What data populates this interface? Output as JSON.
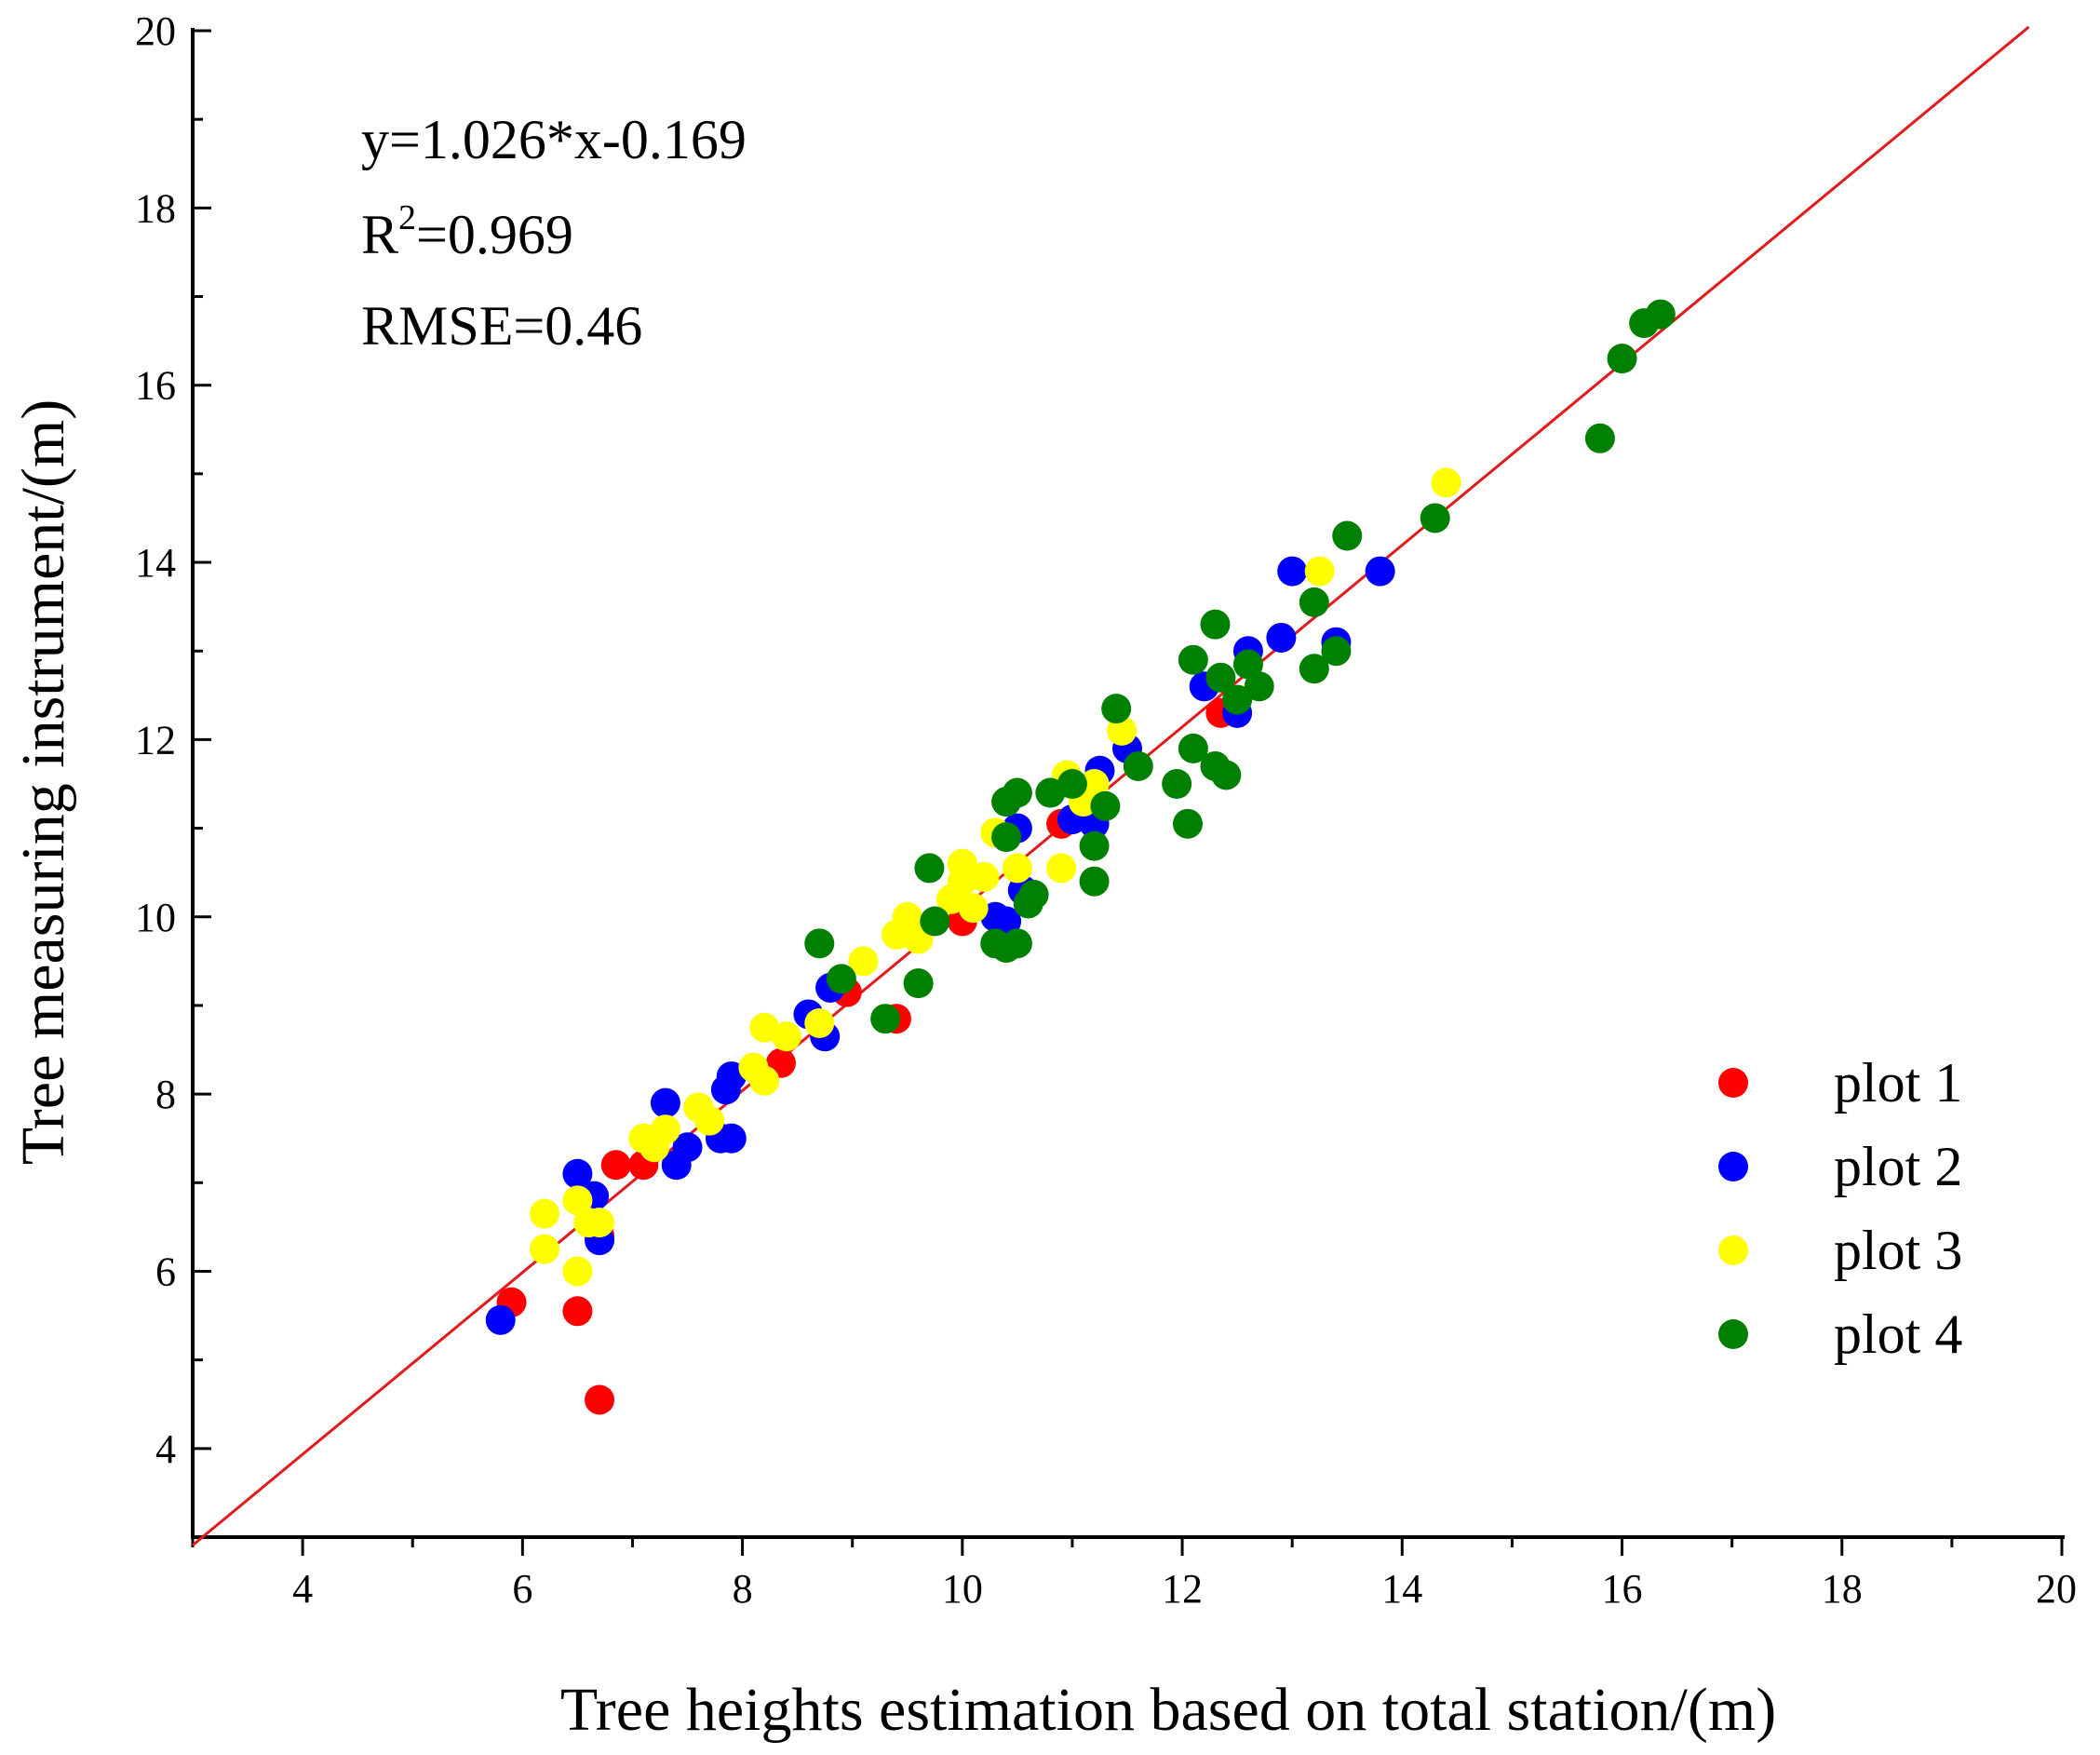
{
  "chart_data": {
    "type": "scatter",
    "xlabel": "Tree heights estimation based on total station/(m)",
    "ylabel": "Tree measuring instrument/(m)",
    "xlim": [
      3,
      20
    ],
    "ylim": [
      3,
      20
    ],
    "x_ticks": [
      4,
      6,
      8,
      10,
      12,
      14,
      16,
      18,
      20
    ],
    "y_ticks": [
      4,
      6,
      8,
      10,
      12,
      14,
      16,
      18,
      20
    ],
    "x_tick_labels": [
      "4",
      "6",
      "8",
      "10",
      "12",
      "14",
      "16",
      "18",
      "20"
    ],
    "y_tick_labels": [
      "4",
      "6",
      "8",
      "10",
      "12",
      "14",
      "16",
      "18",
      "20"
    ],
    "grid": false,
    "legend_position": "bottom-right",
    "annotation": {
      "equation": "y=1.026*x-0.169",
      "r2_prefix": "R",
      "r2_sup": "2",
      "r2_value": "=0.969",
      "rmse": "RMSE=0.46"
    },
    "fit_line": {
      "slope": 1.026,
      "intercept": -0.169,
      "color": "#e31a1c",
      "x_range": [
        3,
        19.7
      ]
    },
    "series": [
      {
        "name": "plot 1",
        "color": "#ff0000",
        "points": [
          [
            5.9,
            5.65
          ],
          [
            6.5,
            5.55
          ],
          [
            6.7,
            4.55
          ],
          [
            6.7,
            6.4
          ],
          [
            6.85,
            7.2
          ],
          [
            7.1,
            7.2
          ],
          [
            8.35,
            8.35
          ],
          [
            8.95,
            9.15
          ],
          [
            9.4,
            8.85
          ],
          [
            10.0,
            9.95
          ],
          [
            10.9,
            11.05
          ],
          [
            12.35,
            12.3
          ]
        ]
      },
      {
        "name": "plot 2",
        "color": "#0000ff",
        "points": [
          [
            5.8,
            5.45
          ],
          [
            6.5,
            7.1
          ],
          [
            6.65,
            6.85
          ],
          [
            6.7,
            6.35
          ],
          [
            7.3,
            7.9
          ],
          [
            7.4,
            7.2
          ],
          [
            7.5,
            7.4
          ],
          [
            7.8,
            7.5
          ],
          [
            7.9,
            7.5
          ],
          [
            7.85,
            8.05
          ],
          [
            7.9,
            8.2
          ],
          [
            8.6,
            8.9
          ],
          [
            8.75,
            8.65
          ],
          [
            8.8,
            9.2
          ],
          [
            10.3,
            10.0
          ],
          [
            10.4,
            9.95
          ],
          [
            10.5,
            11.0
          ],
          [
            10.55,
            10.3
          ],
          [
            11.0,
            11.1
          ],
          [
            11.2,
            11.05
          ],
          [
            11.25,
            11.65
          ],
          [
            11.5,
            11.9
          ],
          [
            12.2,
            12.6
          ],
          [
            12.5,
            12.3
          ],
          [
            12.6,
            13.0
          ],
          [
            12.9,
            13.15
          ],
          [
            13.0,
            13.9
          ],
          [
            13.4,
            13.1
          ],
          [
            13.8,
            13.9
          ]
        ]
      },
      {
        "name": "plot 3",
        "color": "#ffff00",
        "points": [
          [
            6.2,
            6.65
          ],
          [
            6.2,
            6.25
          ],
          [
            6.5,
            6.8
          ],
          [
            6.5,
            6.0
          ],
          [
            6.6,
            6.55
          ],
          [
            6.7,
            6.55
          ],
          [
            7.1,
            7.5
          ],
          [
            7.2,
            7.4
          ],
          [
            7.3,
            7.6
          ],
          [
            7.6,
            7.85
          ],
          [
            7.7,
            7.7
          ],
          [
            8.1,
            8.3
          ],
          [
            8.2,
            8.15
          ],
          [
            8.2,
            8.75
          ],
          [
            8.4,
            8.65
          ],
          [
            8.7,
            8.8
          ],
          [
            9.1,
            9.5
          ],
          [
            9.4,
            9.8
          ],
          [
            9.5,
            10.0
          ],
          [
            9.6,
            9.75
          ],
          [
            9.9,
            10.2
          ],
          [
            10.0,
            10.6
          ],
          [
            10.0,
            10.4
          ],
          [
            10.1,
            10.1
          ],
          [
            10.2,
            10.45
          ],
          [
            10.3,
            10.95
          ],
          [
            10.5,
            10.55
          ],
          [
            10.9,
            10.55
          ],
          [
            10.95,
            11.6
          ],
          [
            11.1,
            11.3
          ],
          [
            11.2,
            11.5
          ],
          [
            11.45,
            12.1
          ],
          [
            13.25,
            13.9
          ],
          [
            14.4,
            14.9
          ]
        ]
      },
      {
        "name": "plot 4",
        "color": "#008000",
        "points": [
          [
            8.7,
            9.7
          ],
          [
            8.9,
            9.3
          ],
          [
            9.3,
            8.85
          ],
          [
            9.6,
            9.25
          ],
          [
            9.7,
            10.55
          ],
          [
            9.75,
            9.95
          ],
          [
            10.3,
            9.7
          ],
          [
            10.4,
            9.65
          ],
          [
            10.4,
            10.9
          ],
          [
            10.4,
            11.3
          ],
          [
            10.5,
            11.4
          ],
          [
            10.5,
            9.7
          ],
          [
            10.6,
            10.15
          ],
          [
            10.65,
            10.25
          ],
          [
            10.8,
            11.4
          ],
          [
            11.0,
            11.5
          ],
          [
            11.2,
            10.4
          ],
          [
            11.2,
            10.8
          ],
          [
            11.3,
            11.25
          ],
          [
            11.4,
            12.35
          ],
          [
            11.6,
            11.7
          ],
          [
            11.95,
            11.5
          ],
          [
            12.05,
            11.05
          ],
          [
            12.1,
            11.9
          ],
          [
            12.1,
            12.9
          ],
          [
            12.3,
            13.3
          ],
          [
            12.3,
            11.7
          ],
          [
            12.35,
            12.7
          ],
          [
            12.4,
            11.6
          ],
          [
            12.5,
            12.45
          ],
          [
            12.6,
            12.85
          ],
          [
            12.7,
            12.6
          ],
          [
            13.2,
            13.55
          ],
          [
            13.2,
            12.8
          ],
          [
            13.4,
            13.0
          ],
          [
            13.5,
            14.3
          ],
          [
            14.3,
            14.5
          ],
          [
            15.8,
            15.4
          ],
          [
            16.0,
            16.3
          ],
          [
            16.2,
            16.7
          ],
          [
            16.35,
            16.8
          ]
        ]
      }
    ]
  }
}
